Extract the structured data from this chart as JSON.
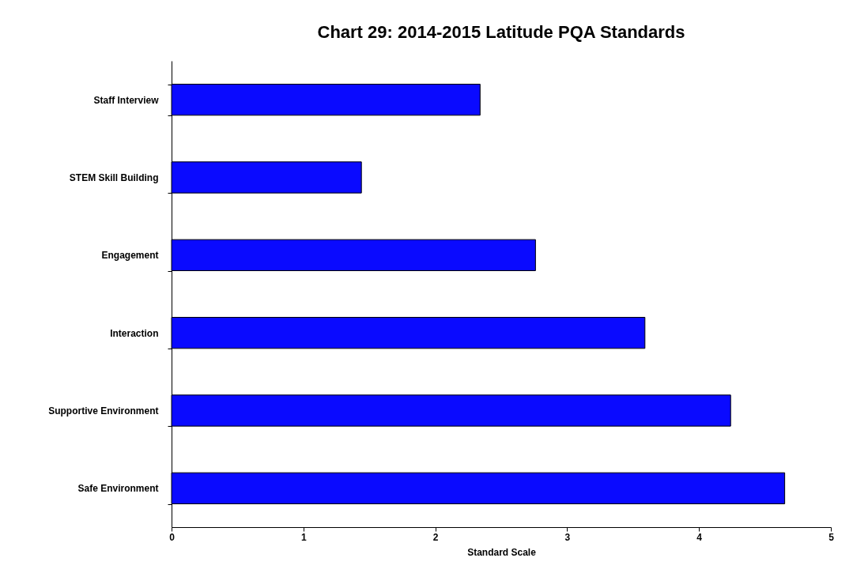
{
  "chart_data": {
    "type": "bar",
    "orientation": "horizontal",
    "title": "Chart 29: 2014-2015 Latitude PQA Standards",
    "xlabel": "Standard Scale",
    "categories": [
      "Staff Interview",
      "STEM Skill Building",
      "Engagement",
      "Interaction",
      "Supportive Environment",
      "Safe Environment"
    ],
    "values": [
      2.34,
      1.44,
      2.76,
      3.59,
      4.24,
      4.65
    ],
    "color": "#0a0aff",
    "xlim": [
      0,
      5
    ],
    "xticks": [
      0,
      1,
      2,
      3,
      4,
      5
    ],
    "grid": false
  }
}
